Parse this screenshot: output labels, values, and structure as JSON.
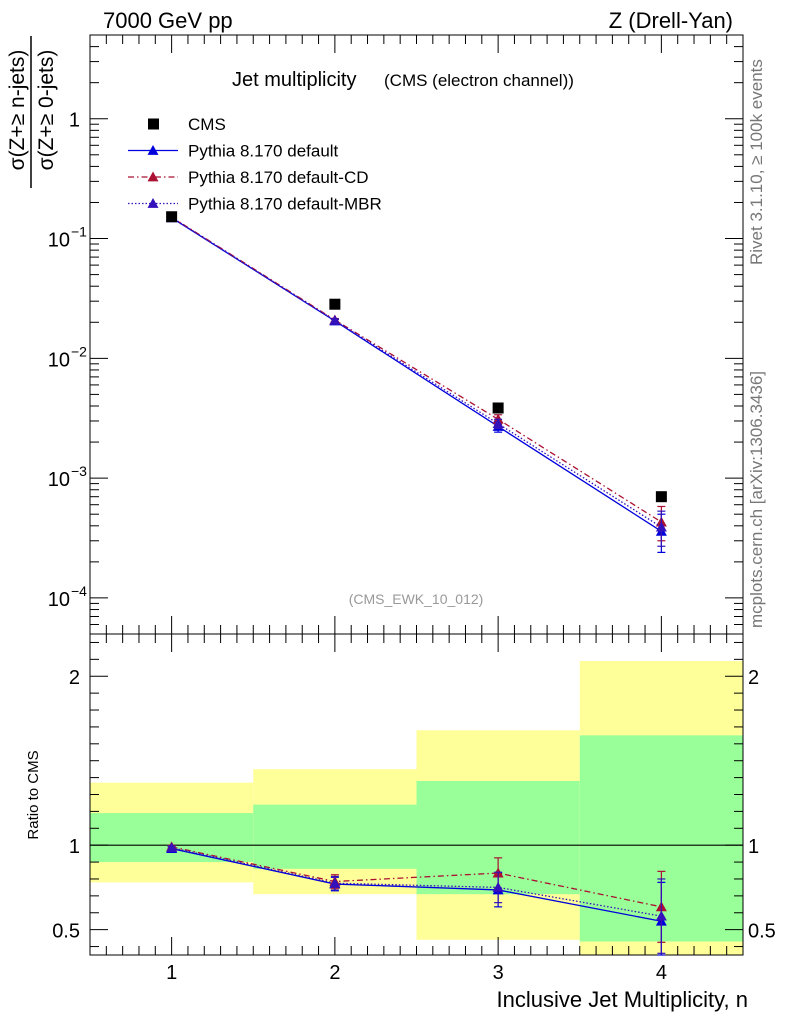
{
  "header": {
    "left": "7000 GeV pp",
    "right": "Z (Drell-Yan)"
  },
  "side_labels": {
    "rivet": "Rivet 3.1.10, ≥ 100k events",
    "source": "mcplots.cern.ch [arXiv:1306.3436]"
  },
  "chart_data": {
    "type": "line",
    "title": "Jet multiplicity",
    "subtitle": "(CMS (electron channel))",
    "analysis_tag": "(CMS_EWK_10_012)",
    "xlabel": "Inclusive Jet Multiplicity, n",
    "xlim": [
      0.5,
      4.5
    ],
    "x_ticks": [
      "1",
      "2",
      "3",
      "4"
    ],
    "x": [
      1,
      2,
      3,
      4
    ],
    "main": {
      "ylabel_numerator": "σ(Z+≥ n-jets)",
      "ylabel_denominator": "σ(Z+≥ 0-jets)",
      "yscale": "log",
      "ylim": [
        5e-05,
        5
      ],
      "y_tick_labels": [
        {
          "value": 1,
          "base": "1",
          "exp": ""
        },
        {
          "value": 0.1,
          "base": "10",
          "exp": "−1"
        },
        {
          "value": 0.01,
          "base": "10",
          "exp": "−2"
        },
        {
          "value": 0.001,
          "base": "10",
          "exp": "−3"
        },
        {
          "value": 0.0001,
          "base": "10",
          "exp": "−4"
        }
      ]
    },
    "ratio": {
      "ylabel": "Ratio to CMS",
      "ylim": [
        0.35,
        2.25
      ],
      "y_tick_labels": [
        {
          "value": 0.5,
          "label": "0.5"
        },
        {
          "value": 1,
          "label": "1"
        },
        {
          "value": 2,
          "label": "2"
        }
      ],
      "bands": [
        {
          "x0": 0.5,
          "x1": 1.5,
          "inner": [
            0.9,
            1.19
          ],
          "outer": [
            0.78,
            1.37
          ]
        },
        {
          "x0": 1.5,
          "x1": 2.5,
          "inner": [
            0.86,
            1.24
          ],
          "outer": [
            0.71,
            1.45
          ]
        },
        {
          "x0": 2.5,
          "x1": 3.5,
          "inner": [
            0.71,
            1.38
          ],
          "outer": [
            0.44,
            1.68
          ]
        },
        {
          "x0": 3.5,
          "x1": 4.5,
          "inner": [
            0.43,
            1.65
          ],
          "outer": [
            0.3,
            2.09
          ]
        }
      ],
      "inner_band_color": "#99ff99",
      "outer_band_color": "#ffff99"
    },
    "series": [
      {
        "name": "CMS",
        "style": "marker",
        "color": "#000000",
        "values": [
          0.152,
          0.0283,
          0.00385,
          0.0007
        ]
      },
      {
        "name": "Pythia 8.170 default",
        "style": "solid",
        "color": "#0000dd",
        "values": [
          0.149,
          0.0205,
          0.0027,
          0.00036
        ],
        "err_low": [
          0.003,
          0.0006,
          0.00028,
          0.00012
        ],
        "err_high": [
          0.003,
          0.0006,
          0.00028,
          0.00014
        ],
        "ratio": [
          0.98,
          0.77,
          0.735,
          0.55
        ],
        "ratio_err": [
          0.01,
          0.04,
          0.1,
          0.23
        ]
      },
      {
        "name": "Pythia 8.170 default-CD",
        "style": "dashdot",
        "color": "#aa1133",
        "values": [
          0.151,
          0.0209,
          0.0031,
          0.00043
        ],
        "err_low": [
          0.003,
          0.0006,
          0.00028,
          0.00013
        ],
        "err_high": [
          0.003,
          0.0006,
          0.00028,
          0.00015
        ],
        "ratio": [
          0.99,
          0.785,
          0.835,
          0.635
        ],
        "ratio_err": [
          0.01,
          0.04,
          0.09,
          0.21
        ]
      },
      {
        "name": "Pythia 8.170 default-MBR",
        "style": "dotted",
        "color": "#3311bb",
        "values": [
          0.15,
          0.0207,
          0.00285,
          0.00039
        ],
        "err_low": [
          0.003,
          0.0006,
          0.00025,
          0.00012
        ],
        "err_high": [
          0.003,
          0.0006,
          0.00025,
          0.00014
        ],
        "ratio": [
          0.985,
          0.775,
          0.75,
          0.58
        ],
        "ratio_err": [
          0.01,
          0.04,
          0.09,
          0.22
        ]
      }
    ]
  }
}
